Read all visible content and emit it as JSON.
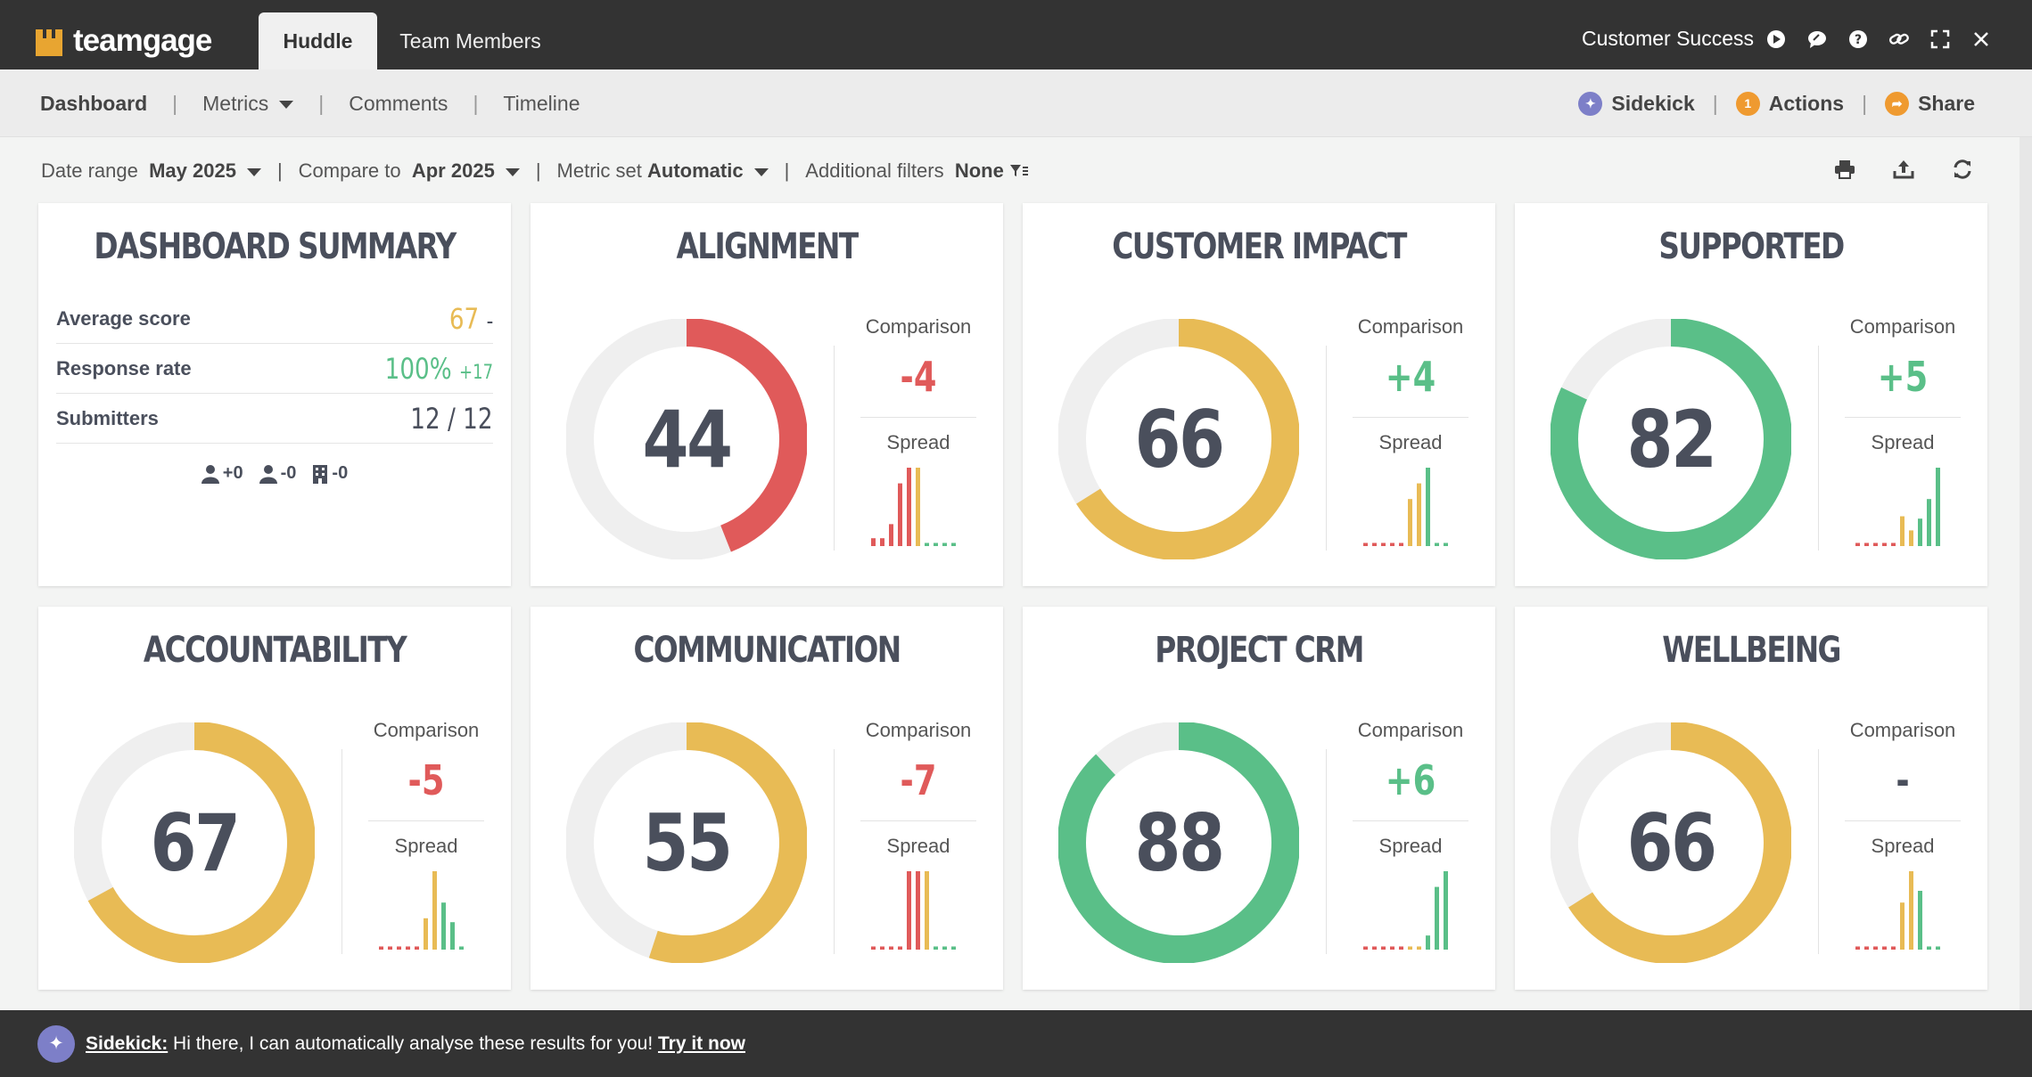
{
  "app": {
    "logo_text": "teamgage",
    "tabs": [
      {
        "label": "Huddle",
        "active": true
      },
      {
        "label": "Team Members",
        "active": false
      }
    ],
    "team_name": "Customer Success",
    "top_icons": [
      "play-icon",
      "chat-icon",
      "help-icon",
      "link-icon",
      "fullscreen-icon",
      "close-icon"
    ]
  },
  "nav": {
    "items": [
      {
        "label": "Dashboard",
        "active": true
      },
      {
        "label": "Metrics",
        "dropdown": true
      },
      {
        "label": "Comments"
      },
      {
        "label": "Timeline"
      }
    ],
    "right": {
      "sidekick": "Sidekick",
      "actions": "Actions",
      "actions_badge": "1",
      "share": "Share"
    }
  },
  "filters": {
    "date_range_label": "Date range",
    "date_range_value": "May 2025",
    "compare_label": "Compare to",
    "compare_value": "Apr 2025",
    "metric_set_label": "Metric set",
    "metric_set_value": "Automatic",
    "additional_label": "Additional filters",
    "additional_value": "None"
  },
  "summary": {
    "title": "DASHBOARD SUMMARY",
    "average_label": "Average score",
    "average_value": "67",
    "average_change": "-",
    "response_label": "Response rate",
    "response_value": "100%",
    "response_change": "+17",
    "submitters_label": "Submitters",
    "submitters_value": "12 / 12",
    "stats": [
      "+0",
      "-0",
      "-0"
    ]
  },
  "colors": {
    "red": "#e05a5a",
    "yellow": "#e8bb55",
    "green": "#5abf88",
    "track": "#efefef",
    "text": "#4a4f5c"
  },
  "metrics": [
    {
      "name": "ALIGNMENT",
      "score": 44,
      "color": "red",
      "comparison": "-4",
      "comparison_color": "red",
      "spread": [
        [
          0.1,
          "r"
        ],
        [
          0.1,
          "r"
        ],
        [
          0.28,
          "r"
        ],
        [
          0.8,
          "r"
        ],
        [
          1.0,
          "r"
        ],
        [
          1.0,
          "y"
        ],
        [
          0.04,
          "g"
        ],
        [
          0.04,
          "g"
        ],
        [
          0.04,
          "g"
        ],
        [
          0.04,
          "g"
        ]
      ]
    },
    {
      "name": "CUSTOMER IMPACT",
      "score": 66,
      "color": "yellow",
      "comparison": "+4",
      "comparison_color": "green",
      "spread": [
        [
          0.04,
          "r"
        ],
        [
          0.04,
          "r"
        ],
        [
          0.04,
          "r"
        ],
        [
          0.04,
          "r"
        ],
        [
          0.04,
          "r"
        ],
        [
          0.6,
          "y"
        ],
        [
          0.8,
          "y"
        ],
        [
          1.0,
          "g"
        ],
        [
          0.04,
          "g"
        ],
        [
          0.04,
          "g"
        ]
      ]
    },
    {
      "name": "SUPPORTED",
      "score": 82,
      "color": "green",
      "comparison": "+5",
      "comparison_color": "green",
      "spread": [
        [
          0.04,
          "r"
        ],
        [
          0.04,
          "r"
        ],
        [
          0.04,
          "r"
        ],
        [
          0.04,
          "r"
        ],
        [
          0.04,
          "r"
        ],
        [
          0.38,
          "y"
        ],
        [
          0.2,
          "y"
        ],
        [
          0.35,
          "g"
        ],
        [
          0.6,
          "g"
        ],
        [
          1.0,
          "g"
        ]
      ]
    },
    {
      "name": "ACCOUNTABILITY",
      "score": 67,
      "color": "yellow",
      "comparison": "-5",
      "comparison_color": "red",
      "spread": [
        [
          0.04,
          "r"
        ],
        [
          0.04,
          "r"
        ],
        [
          0.04,
          "r"
        ],
        [
          0.04,
          "r"
        ],
        [
          0.04,
          "r"
        ],
        [
          0.4,
          "y"
        ],
        [
          1.0,
          "y"
        ],
        [
          0.6,
          "g"
        ],
        [
          0.35,
          "g"
        ],
        [
          0.04,
          "g"
        ]
      ]
    },
    {
      "name": "COMMUNICATION",
      "score": 55,
      "color": "yellow",
      "comparison": "-7",
      "comparison_color": "red",
      "spread": [
        [
          0.04,
          "r"
        ],
        [
          0.04,
          "r"
        ],
        [
          0.04,
          "r"
        ],
        [
          0.04,
          "r"
        ],
        [
          1.0,
          "r"
        ],
        [
          1.0,
          "r"
        ],
        [
          1.0,
          "y"
        ],
        [
          0.04,
          "g"
        ],
        [
          0.04,
          "g"
        ],
        [
          0.04,
          "g"
        ]
      ]
    },
    {
      "name": "PROJECT CRM",
      "score": 88,
      "color": "green",
      "comparison": "+6",
      "comparison_color": "green",
      "spread": [
        [
          0.04,
          "r"
        ],
        [
          0.04,
          "r"
        ],
        [
          0.04,
          "r"
        ],
        [
          0.04,
          "r"
        ],
        [
          0.04,
          "r"
        ],
        [
          0.04,
          "y"
        ],
        [
          0.04,
          "y"
        ],
        [
          0.18,
          "g"
        ],
        [
          0.8,
          "g"
        ],
        [
          1.0,
          "g"
        ]
      ]
    },
    {
      "name": "WELLBEING",
      "score": 66,
      "color": "yellow",
      "comparison": "-",
      "comparison_color": "text",
      "spread": [
        [
          0.04,
          "r"
        ],
        [
          0.04,
          "r"
        ],
        [
          0.04,
          "r"
        ],
        [
          0.04,
          "r"
        ],
        [
          0.04,
          "r"
        ],
        [
          0.6,
          "y"
        ],
        [
          1.0,
          "y"
        ],
        [
          0.75,
          "g"
        ],
        [
          0.04,
          "g"
        ],
        [
          0.04,
          "g"
        ]
      ]
    }
  ],
  "labels": {
    "comparison": "Comparison",
    "spread": "Spread"
  },
  "footer": {
    "sidekick_label": "Sidekick:",
    "message": " Hi there, I can automatically analyse these results for you! ",
    "cta": "Try it now"
  }
}
